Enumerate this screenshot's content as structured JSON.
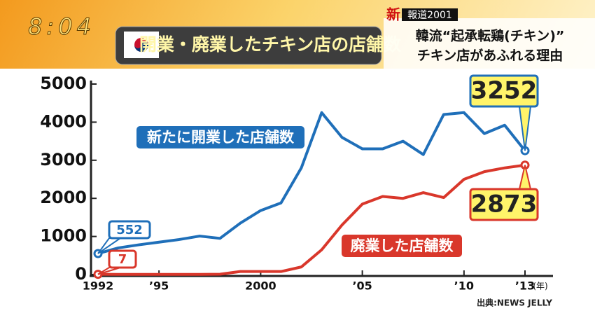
{
  "clock": "8:04",
  "program": {
    "badge": "新",
    "name": "報道2001",
    "headline_1": "韓流“起承転鶏(チキン)”",
    "headline_2": "チキン店があふれる理由"
  },
  "chart_data": {
    "type": "line",
    "title": "開業・廃業したチキン店の店舗数",
    "x": [
      1992,
      1993,
      1994,
      1995,
      1996,
      1997,
      1998,
      1999,
      2000,
      2001,
      2002,
      2003,
      2004,
      2005,
      2006,
      2007,
      2008,
      2009,
      2010,
      2011,
      2012,
      2013
    ],
    "xlim": [
      1992,
      2013
    ],
    "xticks": [
      1992,
      {
        "value": 1995,
        "label": "’95"
      },
      2000,
      {
        "value": 2005,
        "label": "’05"
      },
      {
        "value": 2010,
        "label": "’10"
      },
      {
        "value": 2013,
        "label": "’13"
      }
    ],
    "x_unit": "(年)",
    "ylim": [
      0,
      5000
    ],
    "yticks": [
      0,
      1000,
      2000,
      3000,
      4000,
      5000
    ],
    "grid": false,
    "series": [
      {
        "name": "新たに開業した店舗数",
        "color": "#1f6fb9",
        "values": [
          552,
          700,
          780,
          850,
          920,
          1010,
          950,
          1350,
          1680,
          1880,
          2800,
          4250,
          3600,
          3300,
          3300,
          3500,
          3150,
          4200,
          4250,
          3700,
          3920,
          3252
        ]
      },
      {
        "name": "廃業した店舗数",
        "color": "#d9372b",
        "values": [
          7,
          5,
          5,
          5,
          5,
          5,
          10,
          80,
          80,
          80,
          200,
          650,
          1300,
          1850,
          2050,
          2000,
          2150,
          2020,
          2500,
          2700,
          2800,
          2873
        ]
      }
    ],
    "source": "出典:NEWS JELLY"
  }
}
